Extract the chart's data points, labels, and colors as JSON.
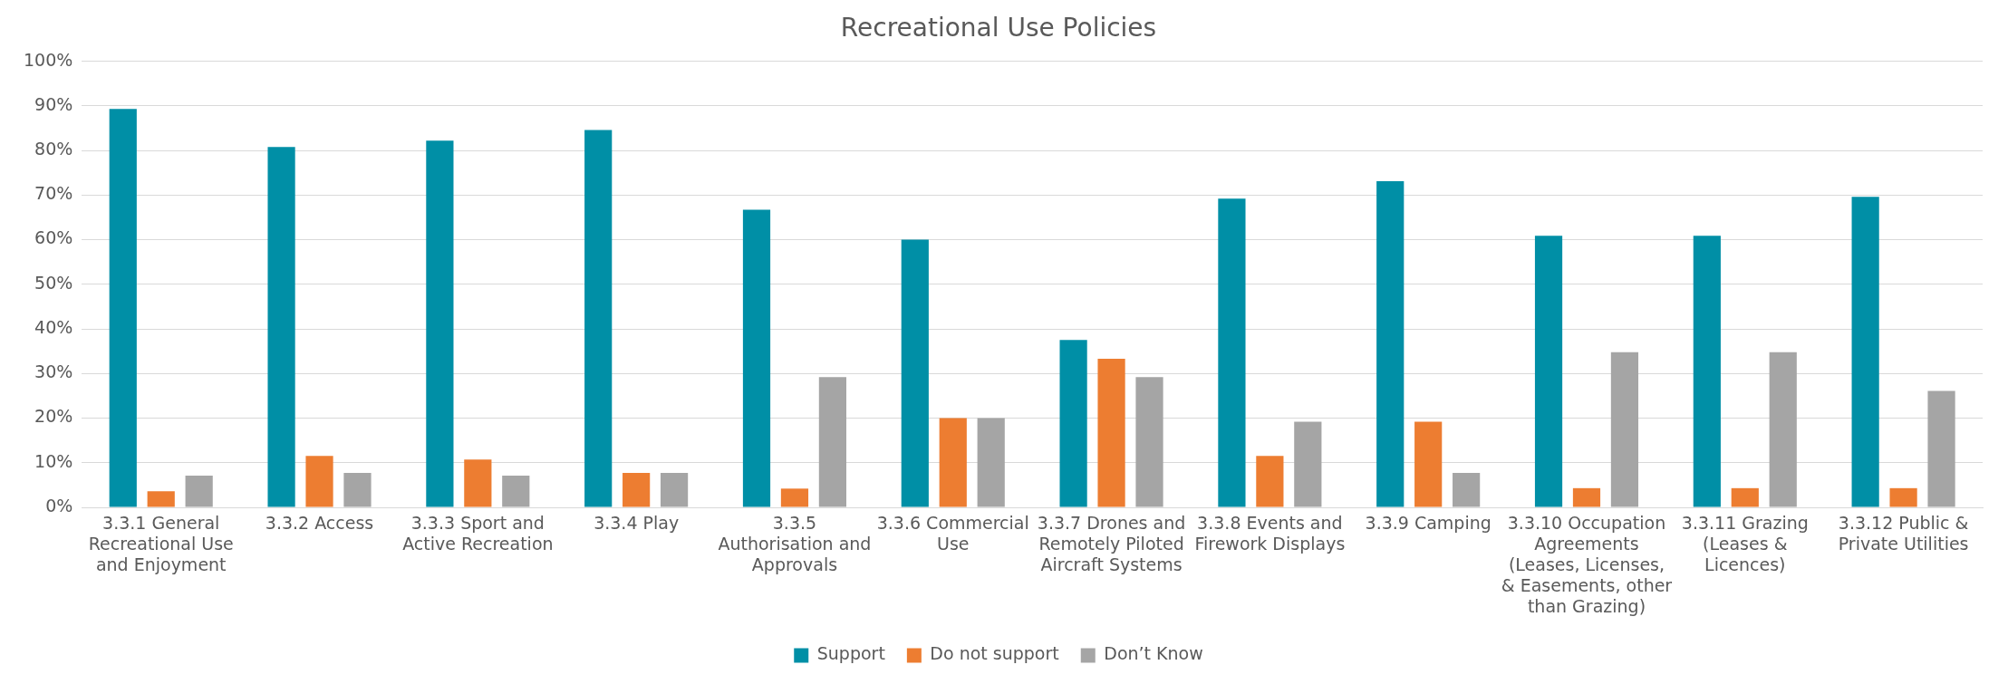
{
  "chart_data": {
    "type": "bar",
    "title": "Recreational Use Policies",
    "categories": [
      "3.3.1 General Recreational Use and Enjoyment",
      "3.3.2 Access",
      "3.3.3 Sport and Active Recreation",
      "3.3.4 Play",
      "3.3.5 Authorisation and Approvals",
      "3.3.6 Commercial Use",
      "3.3.7 Drones and Remotely Piloted Aircraft Systems",
      "3.3.8 Events and Firework Displays",
      "3.3.9 Camping",
      "3.3.10 Occupation Agreements (Leases, Licenses, & Easements, other than Grazing)",
      "3.3.11 Grazing (Leases & Licences)",
      "3.3.12 Public & Private Utilities"
    ],
    "series": [
      {
        "name": "Support",
        "color": "#008fa6",
        "values": [
          89.3,
          80.8,
          82.2,
          84.6,
          66.7,
          60.0,
          37.5,
          69.2,
          73.1,
          60.9,
          60.9,
          69.6
        ]
      },
      {
        "name": "Do not support",
        "color": "#ed7d31",
        "values": [
          3.6,
          11.5,
          10.7,
          7.7,
          4.2,
          20.0,
          33.3,
          11.5,
          19.2,
          4.3,
          4.3,
          4.3
        ]
      },
      {
        "name": "Don’t Know",
        "color": "#a5a5a5",
        "values": [
          7.1,
          7.7,
          7.1,
          7.7,
          29.2,
          20.0,
          29.2,
          19.2,
          7.7,
          34.8,
          34.8,
          26.1
        ]
      }
    ],
    "ylim": [
      0,
      100
    ],
    "yticks": [
      {
        "value": 0,
        "label": "0%"
      },
      {
        "value": 10,
        "label": "10%"
      },
      {
        "value": 20,
        "label": "20%"
      },
      {
        "value": 30,
        "label": "30%"
      },
      {
        "value": 40,
        "label": "40%"
      },
      {
        "value": 50,
        "label": "50%"
      },
      {
        "value": 60,
        "label": "60%"
      },
      {
        "value": 70,
        "label": "70%"
      },
      {
        "value": 80,
        "label": "80%"
      },
      {
        "value": 90,
        "label": "90%"
      },
      {
        "value": 100,
        "label": "100%"
      }
    ],
    "grid": "y",
    "legend": "bottom"
  }
}
